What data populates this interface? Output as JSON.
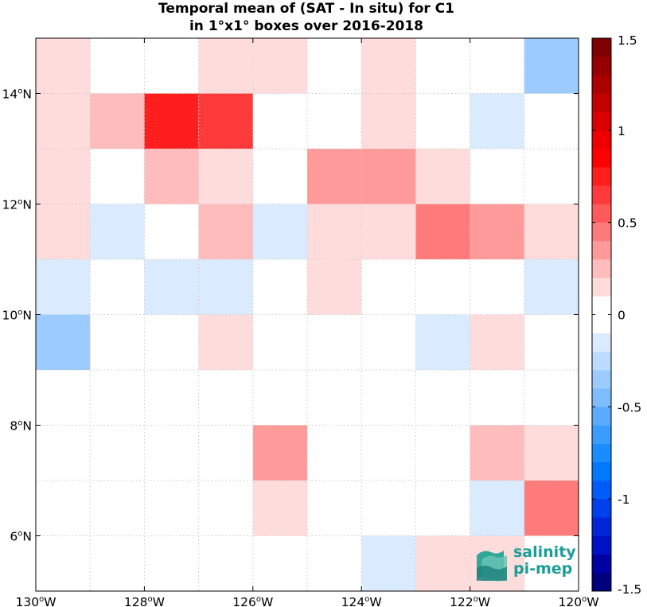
{
  "title_line1": "Temporal mean of (SAT - In situ) for C1",
  "title_line2": "in 1°x1° boxes over 2016-2018",
  "logo": {
    "line1": "salinity",
    "line2": "pi-mep"
  },
  "chart_data": {
    "type": "heatmap",
    "title": "Temporal mean of (SAT - In situ) for C1 in 1°x1° boxes over 2016-2018",
    "x_range": [
      -130,
      -120
    ],
    "y_range": [
      5,
      15
    ],
    "x_ticks": [
      {
        "value": -130,
        "label": "130°W"
      },
      {
        "value": -128,
        "label": "128°W"
      },
      {
        "value": -126,
        "label": "126°W"
      },
      {
        "value": -124,
        "label": "124°W"
      },
      {
        "value": -122,
        "label": "122°W"
      },
      {
        "value": -120,
        "label": "120°W"
      }
    ],
    "y_ticks": [
      {
        "value": 6,
        "label": "6°N"
      },
      {
        "value": 8,
        "label": "8°N"
      },
      {
        "value": 10,
        "label": "10°N"
      },
      {
        "value": 12,
        "label": "12°N"
      },
      {
        "value": 14,
        "label": "14°N"
      }
    ],
    "grid": "dotted",
    "colorbar": {
      "range": [
        -1.5,
        1.5
      ],
      "ticks": [
        {
          "value": 1.5,
          "label": "1.5"
        },
        {
          "value": 1,
          "label": "1"
        },
        {
          "value": 0.5,
          "label": "0.5"
        },
        {
          "value": 0,
          "label": "0"
        },
        {
          "value": -0.5,
          "label": "-0.5"
        },
        {
          "value": -1,
          "label": "-1"
        },
        {
          "value": -1.5,
          "label": "-1.5"
        }
      ],
      "colors": [
        "#00007f",
        "#0000a3",
        "#0010c4",
        "#0026d8",
        "#0040ea",
        "#005cf8",
        "#0078ff",
        "#1a8cff",
        "#3a9cff",
        "#5aabff",
        "#7cbcff",
        "#9cccff",
        "#bcdcff",
        "#dbebff",
        "#ffffff",
        "#ffffff",
        "#ffdcdc",
        "#ffbcbc",
        "#ff9a9a",
        "#ff7a7a",
        "#ff5a5a",
        "#ff3a3a",
        "#ff1e1e",
        "#ff0000",
        "#ee0000",
        "#d80000",
        "#c20000",
        "#ac0000",
        "#960000",
        "#7f0000"
      ]
    },
    "cells": [
      {
        "lon": -129.5,
        "lat": 14.5,
        "value": 0.1
      },
      {
        "lon": -126.5,
        "lat": 14.5,
        "value": 0.1
      },
      {
        "lon": -125.5,
        "lat": 14.5,
        "value": 0.1
      },
      {
        "lon": -123.5,
        "lat": 14.5,
        "value": 0.1
      },
      {
        "lon": -120.5,
        "lat": 14.5,
        "value": -0.35
      },
      {
        "lon": -129.5,
        "lat": 13.5,
        "value": 0.1
      },
      {
        "lon": -128.5,
        "lat": 13.5,
        "value": 0.2
      },
      {
        "lon": -127.5,
        "lat": 13.5,
        "value": 0.75
      },
      {
        "lon": -126.5,
        "lat": 13.5,
        "value": 0.65
      },
      {
        "lon": -123.5,
        "lat": 13.5,
        "value": 0.1
      },
      {
        "lon": -121.5,
        "lat": 13.5,
        "value": -0.1
      },
      {
        "lon": -129.5,
        "lat": 12.5,
        "value": 0.1
      },
      {
        "lon": -127.5,
        "lat": 12.5,
        "value": 0.2
      },
      {
        "lon": -126.5,
        "lat": 12.5,
        "value": 0.1
      },
      {
        "lon": -124.5,
        "lat": 12.5,
        "value": 0.3
      },
      {
        "lon": -123.5,
        "lat": 12.5,
        "value": 0.3
      },
      {
        "lon": -122.5,
        "lat": 12.5,
        "value": 0.1
      },
      {
        "lon": -129.5,
        "lat": 11.5,
        "value": 0.1
      },
      {
        "lon": -128.5,
        "lat": 11.5,
        "value": -0.1
      },
      {
        "lon": -126.5,
        "lat": 11.5,
        "value": 0.2
      },
      {
        "lon": -125.5,
        "lat": 11.5,
        "value": -0.1
      },
      {
        "lon": -124.5,
        "lat": 11.5,
        "value": 0.1
      },
      {
        "lon": -123.5,
        "lat": 11.5,
        "value": 0.1
      },
      {
        "lon": -122.5,
        "lat": 11.5,
        "value": 0.45
      },
      {
        "lon": -121.5,
        "lat": 11.5,
        "value": 0.3
      },
      {
        "lon": -120.5,
        "lat": 11.5,
        "value": 0.1
      },
      {
        "lon": -129.5,
        "lat": 10.5,
        "value": -0.2
      },
      {
        "lon": -127.5,
        "lat": 10.5,
        "value": -0.1
      },
      {
        "lon": -126.5,
        "lat": 10.5,
        "value": -0.1
      },
      {
        "lon": -124.5,
        "lat": 10.5,
        "value": 0.1
      },
      {
        "lon": -120.5,
        "lat": 10.5,
        "value": -0.1
      },
      {
        "lon": -129.5,
        "lat": 9.5,
        "value": -0.3
      },
      {
        "lon": -126.5,
        "lat": 9.5,
        "value": 0.1
      },
      {
        "lon": -122.5,
        "lat": 9.5,
        "value": -0.1
      },
      {
        "lon": -121.5,
        "lat": 9.5,
        "value": 0.1
      },
      {
        "lon": -125.5,
        "lat": 7.5,
        "value": 0.35
      },
      {
        "lon": -121.5,
        "lat": 7.5,
        "value": 0.2
      },
      {
        "lon": -120.5,
        "lat": 7.5,
        "value": 0.1
      },
      {
        "lon": -125.5,
        "lat": 6.5,
        "value": 0.1
      },
      {
        "lon": -121.5,
        "lat": 6.5,
        "value": -0.1
      },
      {
        "lon": -120.5,
        "lat": 6.5,
        "value": 0.45
      },
      {
        "lon": -123.5,
        "lat": 5.5,
        "value": -0.1
      },
      {
        "lon": -122.5,
        "lat": 5.5,
        "value": 0.1
      },
      {
        "lon": -121.5,
        "lat": 5.5,
        "value": 0.1
      }
    ]
  }
}
